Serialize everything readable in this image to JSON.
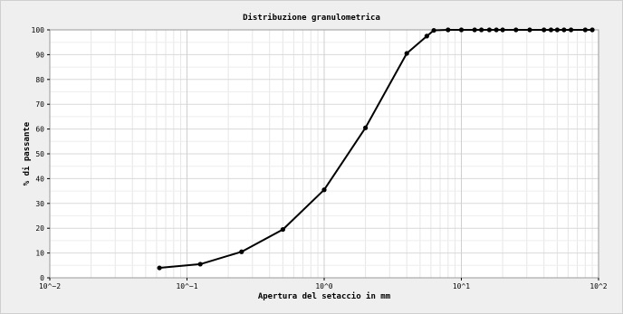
{
  "chart_data": {
    "type": "line",
    "title": "Distribuzione granulometrica",
    "xlabel": "Apertura del setaccio in mm",
    "ylabel": "% di passante",
    "x_scale": "log",
    "xlim": [
      0.01,
      100
    ],
    "ylim": [
      0,
      100
    ],
    "grid": true,
    "x_tick_labels": [
      "10^−2",
      "10^−1",
      "10^0",
      "10^1",
      "10^2"
    ],
    "y_tick_labels": [
      "0",
      "10",
      "20",
      "30",
      "40",
      "50",
      "60",
      "70",
      "80",
      "90",
      "100"
    ],
    "series": [
      {
        "color": "#000000",
        "x": [
          0.063,
          0.125,
          0.25,
          0.5,
          1,
          2,
          4,
          5.6,
          6.3,
          8,
          10,
          12.5,
          14,
          16,
          18,
          20,
          25,
          31.5,
          40,
          45,
          50,
          56,
          63,
          80,
          90
        ],
        "y": [
          4,
          5.5,
          10.5,
          19.5,
          35.5,
          60.5,
          90.5,
          97.5,
          99.8,
          100,
          100,
          100,
          100,
          100,
          100,
          100,
          100,
          100,
          100,
          100,
          100,
          100,
          100,
          100,
          100
        ]
      }
    ]
  }
}
